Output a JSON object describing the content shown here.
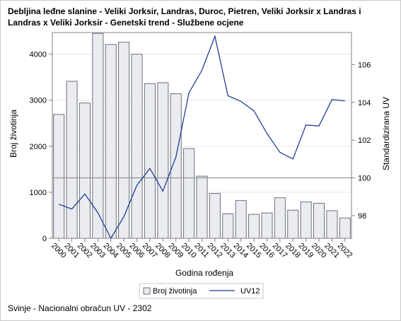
{
  "chart_data": {
    "type": "bar",
    "title": "Debljina leđne slanine - Veliki Jorksir, Landras, Duroc, Pietren, Veliki Jorksir x Landras i Landras x Veliki Jorksir - Genetski trend - Službene ocjene",
    "xlabel": "Godina rođenja",
    "ylabel": "Broj životinja",
    "y2label": "Standardizirana UV",
    "categories": [
      "2000",
      "2001",
      "2002",
      "2003",
      "2004",
      "2005",
      "2006",
      "2007",
      "2008",
      "2009",
      "2010",
      "2011",
      "2012",
      "2013",
      "2014",
      "2015",
      "2016",
      "2017",
      "2018",
      "2019",
      "2020",
      "2021",
      "2022"
    ],
    "ylim": [
      0,
      4470
    ],
    "y_ticks": [
      "0",
      "1000",
      "2000",
      "3000",
      "4000"
    ],
    "y2lim": [
      96.8,
      107.7
    ],
    "y2_ticks": [
      "98",
      "100",
      "102",
      "104",
      "106"
    ],
    "reference_line_y2": 100,
    "grid": true,
    "legend_position": "bottom",
    "series": [
      {
        "name": "Broj životinja",
        "kind": "bar",
        "axis": "left",
        "color": "#eaecf1",
        "stroke": "#6c7078",
        "values": [
          2690,
          3410,
          2940,
          4450,
          4210,
          4260,
          4000,
          3360,
          3380,
          3140,
          1950,
          1350,
          975,
          530,
          820,
          520,
          550,
          880,
          610,
          790,
          760,
          600,
          440
        ]
      },
      {
        "name": "UV12",
        "kind": "line",
        "axis": "right",
        "color": "#213f94",
        "values": [
          98.6,
          98.35,
          99.15,
          98.15,
          96.8,
          97.95,
          99.6,
          100.5,
          99.3,
          101.1,
          104.5,
          105.7,
          107.5,
          104.35,
          104.05,
          103.55,
          102.35,
          101.35,
          101.0,
          102.8,
          102.75,
          104.15,
          104.08
        ]
      }
    ]
  },
  "footnote": "Svinje - Nacionalni obračun UV - 2302",
  "colors": {
    "gridline": "#e6e6e6",
    "axis": "#808080",
    "reference_line": "#9a9a9a",
    "frame": "#c9c9c9"
  }
}
